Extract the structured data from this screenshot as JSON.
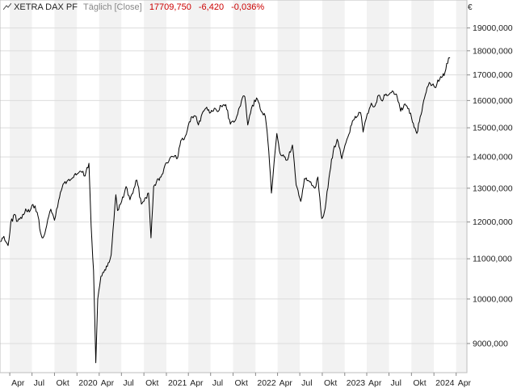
{
  "header": {
    "instrument": "XETRA DAX PF",
    "mode": "Täglich [Close]",
    "last": "17709,750",
    "change": "-6,420",
    "change_pct": "-0,036%"
  },
  "chart_data": {
    "type": "line",
    "currency_symbol": "€",
    "y_scale": "log",
    "ylim": [
      8400,
      20300
    ],
    "y_ticks": [
      9000,
      10000,
      11000,
      12000,
      13000,
      14000,
      15000,
      16000,
      17000,
      18000,
      19000
    ],
    "y_tick_labels": [
      "9000,000",
      "10000,000",
      "11000,000",
      "12000,000",
      "13000,000",
      "14000,000",
      "15000,000",
      "16000,000",
      "17000,000",
      "18000,000",
      "19000,000"
    ],
    "xlim": [
      "2019-02-20",
      "2024-05-15"
    ],
    "x_ticks": [
      "2019-04-01",
      "2019-07-01",
      "2019-10-01",
      "2020-01-01",
      "2020-04-01",
      "2020-07-01",
      "2020-10-01",
      "2021-01-01",
      "2021-04-01",
      "2021-07-01",
      "2021-10-01",
      "2022-01-01",
      "2022-04-01",
      "2022-07-01",
      "2022-10-01",
      "2023-01-01",
      "2023-04-01",
      "2023-07-01",
      "2023-10-01",
      "2024-01-01",
      "2024-04-01"
    ],
    "x_tick_labels": [
      "Apr",
      "Jul",
      "Okt",
      "2020",
      "Apr",
      "Jul",
      "Okt",
      "2021",
      "Apr",
      "Jul",
      "Okt",
      "2022",
      "Apr",
      "Jul",
      "Okt",
      "2023",
      "Apr",
      "Jul",
      "Okt",
      "2024",
      "Apr"
    ],
    "grid": true,
    "series": [
      {
        "color": "#000000",
        "x": [
          "2019-02-22",
          "2019-03-08",
          "2019-03-25",
          "2019-04-05",
          "2019-04-20",
          "2019-05-03",
          "2019-05-20",
          "2019-06-05",
          "2019-06-20",
          "2019-07-05",
          "2019-07-22",
          "2019-08-05",
          "2019-08-15",
          "2019-08-30",
          "2019-09-16",
          "2019-10-01",
          "2019-10-18",
          "2019-11-05",
          "2019-11-25",
          "2019-12-10",
          "2020-01-02",
          "2020-01-17",
          "2020-02-03",
          "2020-02-19",
          "2020-02-28",
          "2020-03-09",
          "2020-03-18",
          "2020-03-26",
          "2020-04-08",
          "2020-04-20",
          "2020-05-04",
          "2020-05-20",
          "2020-06-08",
          "2020-06-15",
          "2020-07-02",
          "2020-07-20",
          "2020-08-05",
          "2020-08-25",
          "2020-09-02",
          "2020-09-21",
          "2020-10-05",
          "2020-10-20",
          "2020-10-30",
          "2020-11-10",
          "2020-11-25",
          "2020-12-10",
          "2020-12-30",
          "2021-01-15",
          "2021-02-01",
          "2021-02-15",
          "2021-03-01",
          "2021-03-15",
          "2021-04-01",
          "2021-04-16",
          "2021-05-03",
          "2021-05-12",
          "2021-06-01",
          "2021-06-15",
          "2021-07-01",
          "2021-07-20",
          "2021-08-02",
          "2021-08-13",
          "2021-09-01",
          "2021-09-20",
          "2021-10-04",
          "2021-10-20",
          "2021-11-08",
          "2021-11-18",
          "2021-11-30",
          "2021-12-15",
          "2022-01-05",
          "2022-01-24",
          "2022-02-10",
          "2022-02-24",
          "2022-03-07",
          "2022-03-29",
          "2022-04-12",
          "2022-04-28",
          "2022-05-12",
          "2022-06-01",
          "2022-06-16",
          "2022-07-05",
          "2022-07-20",
          "2022-08-15",
          "2022-09-01",
          "2022-09-13",
          "2022-09-29",
          "2022-10-13",
          "2022-11-01",
          "2022-11-15",
          "2022-12-01",
          "2022-12-20",
          "2023-01-10",
          "2023-02-02",
          "2023-02-20",
          "2023-03-07",
          "2023-03-17",
          "2023-04-03",
          "2023-04-20",
          "2023-05-05",
          "2023-05-19",
          "2023-06-01",
          "2023-06-15",
          "2023-07-07",
          "2023-07-31",
          "2023-08-18",
          "2023-09-01",
          "2023-09-20",
          "2023-10-05",
          "2023-10-23",
          "2023-11-06",
          "2023-11-20",
          "2023-12-04",
          "2023-12-13",
          "2024-01-05",
          "2024-01-17",
          "2024-02-01",
          "2024-02-15",
          "2024-03-01",
          "2024-03-07"
        ],
        "y": [
          11450,
          11600,
          11350,
          11980,
          12220,
          12020,
          12100,
          12380,
          12290,
          12510,
          12280,
          11700,
          11560,
          11900,
          12370,
          12050,
          12630,
          13120,
          13250,
          13290,
          13450,
          13530,
          13380,
          13790,
          11900,
          10700,
          8600,
          10000,
          10550,
          10650,
          10800,
          11100,
          12800,
          12330,
          12600,
          13050,
          12650,
          13060,
          13250,
          12520,
          12700,
          12850,
          11560,
          13050,
          13280,
          13350,
          13800,
          13950,
          14000,
          13950,
          14550,
          14600,
          15100,
          15400,
          15400,
          15100,
          15600,
          15750,
          15550,
          15700,
          15600,
          15800,
          15850,
          15130,
          15200,
          15500,
          16100,
          16140,
          15100,
          15700,
          16100,
          15600,
          15400,
          14200,
          12850,
          14800,
          14100,
          14000,
          13900,
          14400,
          13100,
          12600,
          13300,
          13200,
          13000,
          13350,
          12100,
          12400,
          13500,
          14200,
          14600,
          13940,
          14600,
          15250,
          15400,
          15550,
          14850,
          15500,
          15900,
          15800,
          16200,
          16000,
          16200,
          16300,
          16250,
          15600,
          15850,
          15700,
          15200,
          14800,
          15400,
          16000,
          16500,
          16700,
          16500,
          16800,
          16900,
          17100,
          17700,
          17710
        ]
      }
    ]
  }
}
